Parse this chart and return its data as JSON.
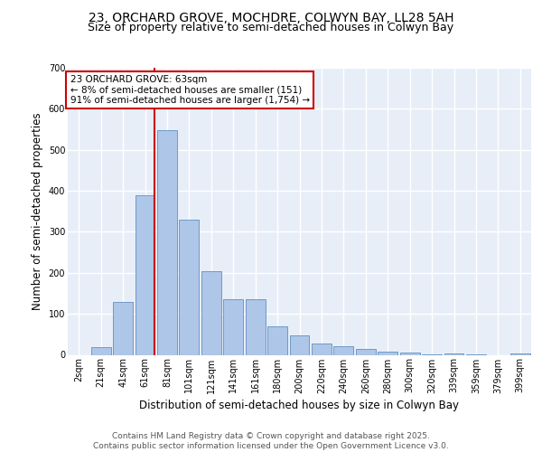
{
  "title1": "23, ORCHARD GROVE, MOCHDRE, COLWYN BAY, LL28 5AH",
  "title2": "Size of property relative to semi-detached houses in Colwyn Bay",
  "xlabel": "Distribution of semi-detached houses by size in Colwyn Bay",
  "ylabel": "Number of semi-detached properties",
  "categories": [
    "2sqm",
    "21sqm",
    "41sqm",
    "61sqm",
    "81sqm",
    "101sqm",
    "121sqm",
    "141sqm",
    "161sqm",
    "180sqm",
    "200sqm",
    "220sqm",
    "240sqm",
    "260sqm",
    "280sqm",
    "300sqm",
    "320sqm",
    "339sqm",
    "359sqm",
    "379sqm",
    "399sqm"
  ],
  "values": [
    0,
    18,
    130,
    390,
    548,
    330,
    205,
    135,
    135,
    70,
    47,
    28,
    22,
    14,
    8,
    6,
    1,
    3,
    1,
    0,
    4
  ],
  "bar_color": "#aec6e8",
  "bar_edge_color": "#6090c0",
  "vline_color": "#cc0000",
  "vline_index": 3,
  "annotation_text": "23 ORCHARD GROVE: 63sqm\n← 8% of semi-detached houses are smaller (151)\n91% of semi-detached houses are larger (1,754) →",
  "annotation_box_edgecolor": "#cc0000",
  "ylim": [
    0,
    700
  ],
  "yticks": [
    0,
    100,
    200,
    300,
    400,
    500,
    600,
    700
  ],
  "background_color": "#e8eef8",
  "grid_color": "#ffffff",
  "footer_text": "Contains HM Land Registry data © Crown copyright and database right 2025.\nContains public sector information licensed under the Open Government Licence v3.0.",
  "title1_fontsize": 10,
  "title2_fontsize": 9,
  "axis_label_fontsize": 8.5,
  "tick_fontsize": 7,
  "footer_fontsize": 6.5,
  "annot_fontsize": 7.5
}
